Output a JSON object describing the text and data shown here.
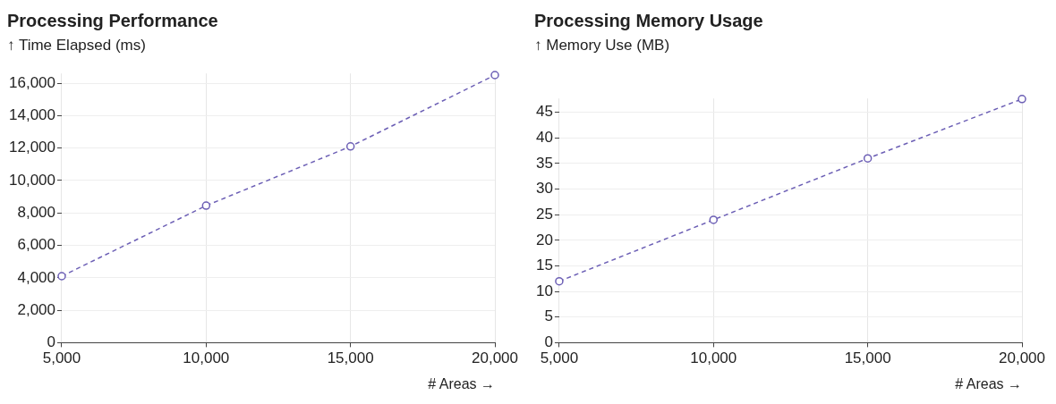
{
  "chart_data": [
    {
      "type": "line",
      "title": "Processing Performance",
      "ylabel": "↑ Time Elapsed (ms)",
      "xlabel": "# Areas →",
      "x": [
        5000,
        10000,
        15000,
        20000
      ],
      "series": [
        {
          "color": "#6c5fb5",
          "values": [
            4100,
            8450,
            12100,
            16500
          ]
        }
      ],
      "xlim": [
        5000,
        20000
      ],
      "xticks": [
        {
          "value": 5000,
          "label": "5,000"
        },
        {
          "value": 10000,
          "label": "10,000"
        },
        {
          "value": 15000,
          "label": "15,000"
        },
        {
          "value": 20000,
          "label": "20,000"
        }
      ],
      "ylim": [
        0,
        16600
      ],
      "yticks": [
        0,
        {
          "value": 2000,
          "label": "2,000"
        },
        {
          "value": 4000,
          "label": "4,000"
        },
        {
          "value": 6000,
          "label": "6,000"
        },
        {
          "value": 8000,
          "label": "8,000"
        },
        {
          "value": 10000,
          "label": "10,000"
        },
        {
          "value": 12000,
          "label": "12,000"
        },
        {
          "value": 14000,
          "label": "14,000"
        },
        {
          "value": 16000,
          "label": "16,000"
        }
      ],
      "grid": true,
      "legend": false,
      "marker": "circle",
      "line_style": "dashed"
    },
    {
      "type": "line",
      "title": "Processing Memory Usage",
      "ylabel": "↑ Memory Use (MB)",
      "xlabel": "# Areas →",
      "x": [
        5000,
        10000,
        15000,
        20000
      ],
      "series": [
        {
          "color": "#6c5fb5",
          "values": [
            12,
            24,
            36,
            47.6
          ]
        }
      ],
      "xlim": [
        5000,
        20000
      ],
      "xticks": [
        {
          "value": 5000,
          "label": "5,000"
        },
        {
          "value": 10000,
          "label": "10,000"
        },
        {
          "value": 15000,
          "label": "15,000"
        },
        {
          "value": 20000,
          "label": "20,000"
        }
      ],
      "ylim": [
        0,
        47.7
      ],
      "yticks": [
        0,
        5,
        10,
        15,
        20,
        25,
        30,
        35,
        40,
        45
      ],
      "grid": true,
      "legend": false,
      "marker": "circle",
      "line_style": "dashed"
    }
  ]
}
